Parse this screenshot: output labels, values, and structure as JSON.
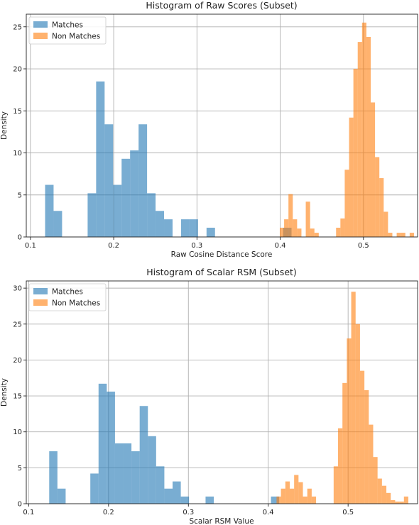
{
  "chart_data": [
    {
      "type": "histogram",
      "title": "Histogram of Raw Scores (Subset)",
      "xlabel": "Raw Cosine Distance Score",
      "ylabel": "Density",
      "xlim": [
        0.095,
        0.565
      ],
      "ylim": [
        0,
        26.5
      ],
      "xticks": [
        "0.1",
        "0.2",
        "0.3",
        "0.4",
        "0.5"
      ],
      "yticks": [
        "0",
        "5",
        "10",
        "15",
        "20",
        "25"
      ],
      "grid": true,
      "legend_position": "top-left",
      "series": [
        {
          "name": "Matches",
          "color": "#1f77b4",
          "bin_width": 0.0102,
          "bins": [
            [
              0.1176,
              6.2
            ],
            [
              0.1278,
              3.1
            ],
            [
              0.1687,
              5.2
            ],
            [
              0.1789,
              18.5
            ],
            [
              0.1891,
              13.4
            ],
            [
              0.1993,
              6.2
            ],
            [
              0.2095,
              9.3
            ],
            [
              0.2197,
              10.3
            ],
            [
              0.2299,
              13.4
            ],
            [
              0.2401,
              5.2
            ],
            [
              0.2503,
              3.1
            ],
            [
              0.2605,
              2.1
            ],
            [
              0.2809,
              2.1
            ],
            [
              0.2911,
              2.1
            ],
            [
              0.3115,
              1.1
            ],
            [
              0.4034,
              1.1
            ]
          ]
        },
        {
          "name": "Non Matches",
          "color": "#ff7f0e",
          "bin_width": 0.0052,
          "bins": [
            [
              0.3995,
              1.1
            ],
            [
              0.4047,
              2.1
            ],
            [
              0.4099,
              5.1
            ],
            [
              0.4151,
              2.1
            ],
            [
              0.4203,
              1.0
            ],
            [
              0.4307,
              4.2
            ],
            [
              0.4359,
              1.0
            ],
            [
              0.4411,
              0.5
            ],
            [
              0.4671,
              1.1
            ],
            [
              0.4723,
              2.2
            ],
            [
              0.4775,
              8.0
            ],
            [
              0.4827,
              14.2
            ],
            [
              0.4879,
              20.0
            ],
            [
              0.4931,
              23.2
            ],
            [
              0.4983,
              25.5
            ],
            [
              0.5035,
              23.8
            ],
            [
              0.5087,
              16.0
            ],
            [
              0.5139,
              9.5
            ],
            [
              0.5191,
              7.0
            ],
            [
              0.5243,
              3.0
            ],
            [
              0.5295,
              0.5
            ],
            [
              0.5399,
              0.5
            ],
            [
              0.5451,
              0.5
            ],
            [
              0.5555,
              0.5
            ]
          ]
        }
      ]
    },
    {
      "type": "histogram",
      "title": "Histogram of Scalar RSM (Subset)",
      "xlabel": "Scalar RSM Value",
      "ylabel": "Density",
      "xlim": [
        0.097,
        0.587
      ],
      "ylim": [
        0,
        31
      ],
      "xticks": [
        "0.1",
        "0.2",
        "0.3",
        "0.4",
        "0.5"
      ],
      "yticks": [
        "0",
        "5",
        "10",
        "15",
        "20",
        "25",
        "30"
      ],
      "grid": true,
      "legend_position": "top-left",
      "series": [
        {
          "name": "Matches",
          "color": "#1f77b4",
          "bin_width": 0.0103,
          "bins": [
            [
              0.1257,
              7.3
            ],
            [
              0.136,
              2.1
            ],
            [
              0.1772,
              4.2
            ],
            [
              0.1875,
              16.7
            ],
            [
              0.1978,
              15.6
            ],
            [
              0.2081,
              8.4
            ],
            [
              0.2184,
              8.4
            ],
            [
              0.2287,
              7.3
            ],
            [
              0.239,
              13.6
            ],
            [
              0.2493,
              9.4
            ],
            [
              0.2596,
              5.2
            ],
            [
              0.2699,
              2.1
            ],
            [
              0.2802,
              3.1
            ],
            [
              0.2905,
              1.0
            ],
            [
              0.3215,
              1.0
            ],
            [
              0.4034,
              1.0
            ]
          ]
        },
        {
          "name": "Non Matches",
          "color": "#ff7f0e",
          "bin_width": 0.0055,
          "bins": [
            [
              0.4104,
              1.0
            ],
            [
              0.4159,
              2.1
            ],
            [
              0.4214,
              3.1
            ],
            [
              0.4269,
              2.1
            ],
            [
              0.4324,
              4.0
            ],
            [
              0.4379,
              3.0
            ],
            [
              0.4434,
              1.0
            ],
            [
              0.4489,
              2.1
            ],
            [
              0.4544,
              1.0
            ],
            [
              0.4819,
              5.2
            ],
            [
              0.4874,
              10.5
            ],
            [
              0.4929,
              16.8
            ],
            [
              0.4984,
              23.0
            ],
            [
              0.5039,
              29.5
            ],
            [
              0.5094,
              25.0
            ],
            [
              0.5149,
              18.5
            ],
            [
              0.5204,
              15.8
            ],
            [
              0.5259,
              11.0
            ],
            [
              0.5314,
              6.5
            ],
            [
              0.5369,
              3.5
            ],
            [
              0.5424,
              2.5
            ],
            [
              0.5479,
              1.5
            ],
            [
              0.5534,
              0.5
            ],
            [
              0.5589,
              0.3
            ],
            [
              0.5644,
              0.3
            ],
            [
              0.5699,
              1.0
            ]
          ]
        }
      ]
    }
  ]
}
